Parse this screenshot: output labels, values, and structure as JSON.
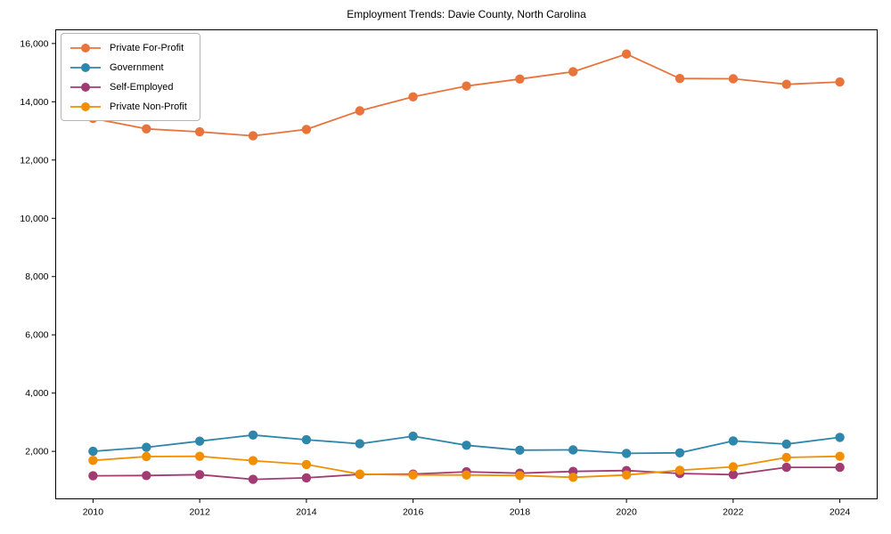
{
  "page": {
    "background": "#ffffff"
  },
  "chart_data": {
    "type": "line",
    "title": "Employment Trends: Davie County, North Carolina",
    "x": [
      2010,
      2011,
      2012,
      2013,
      2014,
      2015,
      2016,
      2017,
      2018,
      2019,
      2020,
      2021,
      2022,
      2023,
      2024
    ],
    "series": [
      {
        "name": "Private For-Profit",
        "color": "#E8743B",
        "values": [
          13430,
          13070,
          12970,
          12830,
          13050,
          13690,
          14170,
          14540,
          14780,
          15030,
          15640,
          14800,
          14790,
          14600,
          14680
        ]
      },
      {
        "name": "Government",
        "color": "#2E86AB",
        "values": [
          2000,
          2140,
          2350,
          2560,
          2400,
          2260,
          2520,
          2210,
          2040,
          2050,
          1930,
          1950,
          2360,
          2250,
          2480
        ]
      },
      {
        "name": "Self-Employed",
        "color": "#A23B72",
        "values": [
          1160,
          1170,
          1200,
          1040,
          1090,
          1210,
          1220,
          1300,
          1250,
          1310,
          1340,
          1240,
          1200,
          1450,
          1450
        ]
      },
      {
        "name": "Private Non-Profit",
        "color": "#F18F01",
        "values": [
          1690,
          1820,
          1830,
          1680,
          1550,
          1220,
          1190,
          1190,
          1170,
          1110,
          1190,
          1350,
          1470,
          1790,
          1830
        ]
      }
    ],
    "xlabel": "",
    "ylabel": "",
    "xlim": [
      2009.3,
      2024.7
    ],
    "ylim": [
      370,
      16470
    ],
    "xticks": [
      2010,
      2012,
      2014,
      2016,
      2018,
      2020,
      2022,
      2024
    ],
    "yticks": [
      2000,
      4000,
      6000,
      8000,
      10000,
      12000,
      14000,
      16000
    ],
    "grid": false,
    "legend_position": "upper-left",
    "marker": "circle",
    "axis_color": "#000000"
  }
}
